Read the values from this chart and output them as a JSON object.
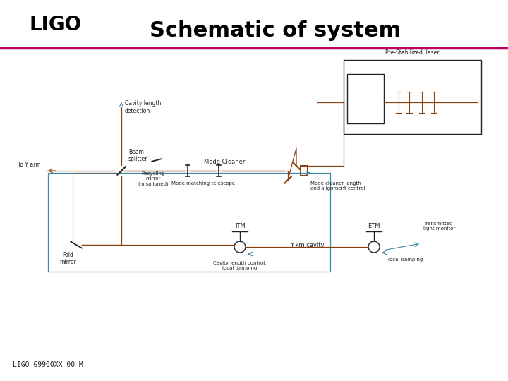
{
  "title": "Schematic of system",
  "title_fontsize": 22,
  "title_fontweight": "bold",
  "footer_text": "LIGO-G9900XX-00-M",
  "footer_fontsize": 7,
  "bg_color": "#ffffff",
  "header_line_color": "#bb0066",
  "beam_color": "#8B4010",
  "control_color": "#3a8aaa",
  "component_color": "#222222",
  "ligo_text": "LIGO",
  "ligo_fontsize": 20,
  "ligo_fontweight": "bold",
  "wave_color": "#bbbbbb"
}
